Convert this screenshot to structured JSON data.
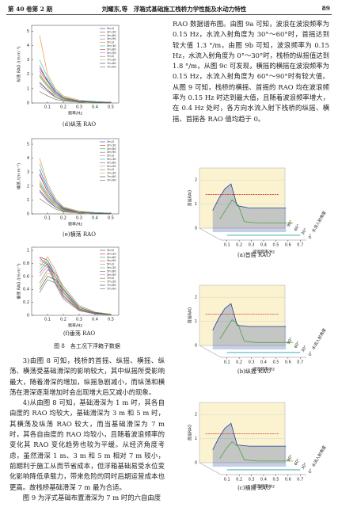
{
  "header": {
    "left": "第 40 卷第 2 期",
    "center": "刘耀东,等　浮箱式基础施工栈桥力学性能及水动力特性",
    "page": "89"
  },
  "left_text": [
    "3)由图 8 可知，栈桥的首摇、纵摇、横摇、纵荡、横荡受基础滑深的影响较大，其中纵摇所受影响最大，随着滑深的增加，纵摇急剧减小，而纵荡和横荡在滑深逐渐增加时会出现增大后又减小的现象。",
    "4)从由图 8 可知，基础滑深为 1 m 时，其各自由度的 RAO 均较大，基础滑深为 3 m 和 5 m 时，其横荡及纵荡 RAO 较大，而当基础滑深为 7 m 时，其各自由度的 RAO 均较小，且随着波浪频率的变化其 RAO 变化趋势也较为平缓。从经济角度考虑，虽然滑深 1 m、3 m 和 5 m 相对 7 m 较小，前期利于施工从而节省成本，但浮箱基础易受水位变化影响降低承载力，带来危险的同时后期运营成本也更高。故栈桥基础滑深 7 m 最为合适。",
    "图 9 为浮式基础布置滑深为 7 m 时的六自由度"
  ],
  "right_text": "RAO 数据谱布图。由图 9a 可知，波浪在波浪频率为 0.15 Hz，水流入射角度为 30°～60°时，首摇达到较大值 1.3 °/m，由图 9b 可知，波浪频率为 0.15 Hz，水流入射角度为 0°～30°时，栈桥的纵摇值达到 1.8 °/m，从图 9c 可发现，横摇的横摇在波浪频率为 0.15 Hz，水流入射角度为 60°～90°时有较大值。从图 9 可知，栈桥的横摇、首摇的 RAO 均在波浪频率为 0.15 Hz 时达到最大值，且随着波浪频率增大，在 0.4 Hz 处时，各方向水流入射下栈桥的纵摇、横摇、首摇各 RAO 值均趋于 0。",
  "figure8_caption": "图 8　各工况下浮箱子数据",
  "chart_data": [
    {
      "type": "line",
      "caption": "(d)纵荡 RAO",
      "ylabel": "纵荡 RAO /(m·m⁻¹)",
      "xlabel": "频率/Hz",
      "xlim": [
        0,
        0.55
      ],
      "ylim": [
        0,
        5.4
      ],
      "xticks": [
        0.1,
        0.2,
        0.3,
        0.4,
        0.5
      ],
      "yticks": [
        0,
        1,
        2,
        3,
        4,
        5
      ],
      "x": [
        0.05,
        0.1,
        0.15,
        0.2,
        0.3,
        0.4,
        0.5
      ],
      "series": [
        {
          "name": "3m,0",
          "color": "#1f3fbf",
          "values": [
            2.4,
            1.6,
            0.8,
            0.4,
            0.15,
            0.1,
            0.05
          ]
        },
        {
          "name": "3m,30",
          "color": "#d62728",
          "values": [
            2.2,
            1.5,
            0.7,
            0.35,
            0.15,
            0.1,
            0.05
          ]
        },
        {
          "name": "3m,60",
          "color": "#2ca02c",
          "values": [
            1.9,
            1.2,
            0.6,
            0.3,
            0.1,
            0.05,
            0.05
          ]
        },
        {
          "name": "3m,90",
          "color": "#9467bd",
          "values": [
            1.2,
            0.8,
            0.4,
            0.2,
            0.1,
            0.05,
            0
          ]
        },
        {
          "name": "5m,0",
          "color": "#ff7f0e",
          "values": [
            4.7,
            2.0,
            1.0,
            0.5,
            0.2,
            0.1,
            0.05
          ]
        },
        {
          "name": "5m,30",
          "color": "#17becf",
          "values": [
            3.0,
            1.8,
            0.9,
            0.4,
            0.15,
            0.1,
            0.05
          ]
        },
        {
          "name": "5m,60",
          "color": "#8c564b",
          "values": [
            2.6,
            1.5,
            0.7,
            0.35,
            0.1,
            0.05,
            0.05
          ]
        },
        {
          "name": "5m,90",
          "color": "#e377c2",
          "values": [
            1.5,
            0.9,
            0.5,
            0.25,
            0.1,
            0.05,
            0
          ]
        },
        {
          "name": "7m,0",
          "color": "#7f7f7f",
          "values": [
            2.0,
            1.3,
            0.6,
            0.3,
            0.1,
            0.05,
            0
          ]
        },
        {
          "name": "7m,30",
          "color": "#bcbd22",
          "values": [
            1.8,
            1.1,
            0.5,
            0.25,
            0.1,
            0.05,
            0
          ]
        },
        {
          "name": "7m,60",
          "color": "#393b79",
          "values": [
            1.4,
            0.9,
            0.4,
            0.2,
            0.1,
            0.05,
            0
          ]
        },
        {
          "name": "7m,90",
          "color": "#637939",
          "values": [
            0.8,
            0.5,
            0.25,
            0.15,
            0.05,
            0,
            0
          ]
        }
      ]
    },
    {
      "type": "line",
      "caption": "(e)横荡 RAO",
      "ylabel": "横荡 /(m·m⁻¹)",
      "xlabel": "频率/Hz",
      "xlim": [
        0,
        0.55
      ],
      "ylim": [
        0,
        5.4
      ],
      "xticks": [
        0.1,
        0.2,
        0.3,
        0.4,
        0.5
      ],
      "yticks": [
        0,
        1,
        2,
        3,
        4,
        5
      ],
      "x": [
        0.05,
        0.1,
        0.15,
        0.2,
        0.3,
        0.4,
        0.5
      ],
      "series": [
        {
          "name": "3m,0",
          "color": "#1f3fbf",
          "values": [
            3.2,
            1.8,
            0.9,
            0.4,
            0.15,
            0.1,
            0.05
          ]
        },
        {
          "name": "3m,30",
          "color": "#d62728",
          "values": [
            2.8,
            1.6,
            0.8,
            0.35,
            0.15,
            0.1,
            0.05
          ]
        },
        {
          "name": "3m,60",
          "color": "#2ca02c",
          "values": [
            2.2,
            1.3,
            0.6,
            0.3,
            0.1,
            0.05,
            0.05
          ]
        },
        {
          "name": "3m,90",
          "color": "#9467bd",
          "values": [
            1.6,
            0.9,
            0.5,
            0.2,
            0.1,
            0.05,
            0
          ]
        },
        {
          "name": "5m,0",
          "color": "#ff7f0e",
          "values": [
            4.0,
            2.2,
            1.1,
            0.5,
            0.2,
            0.1,
            0.05
          ]
        },
        {
          "name": "5m,30",
          "color": "#17becf",
          "values": [
            3.6,
            2.0,
            1.0,
            0.45,
            0.15,
            0.1,
            0.05
          ]
        },
        {
          "name": "5m,60",
          "color": "#8c564b",
          "values": [
            2.9,
            1.6,
            0.8,
            0.35,
            0.1,
            0.05,
            0.05
          ]
        },
        {
          "name": "5m,90",
          "color": "#e377c2",
          "values": [
            2.0,
            1.1,
            0.6,
            0.25,
            0.1,
            0.05,
            0
          ]
        },
        {
          "name": "7m,0",
          "color": "#7f7f7f",
          "values": [
            2.4,
            1.4,
            0.7,
            0.3,
            0.1,
            0.05,
            0
          ]
        },
        {
          "name": "7m,30",
          "color": "#bcbd22",
          "values": [
            2.1,
            1.2,
            0.6,
            0.25,
            0.1,
            0.05,
            0
          ]
        },
        {
          "name": "7m,60",
          "color": "#393b79",
          "values": [
            1.7,
            1.0,
            0.5,
            0.2,
            0.1,
            0.05,
            0
          ]
        },
        {
          "name": "7m,90",
          "color": "#637939",
          "values": [
            1.1,
            0.7,
            0.35,
            0.15,
            0.05,
            0,
            0
          ]
        }
      ]
    },
    {
      "type": "line",
      "caption": "(f)垂荡 RAO",
      "ylabel": "垂荡 RAO /(m·m⁻¹)",
      "xlabel": "频率/Hz",
      "xlim": [
        0,
        0.55
      ],
      "ylim": [
        0,
        1.05
      ],
      "xticks": [
        0.1,
        0.2,
        0.3,
        0.4,
        0.5
      ],
      "yticks": [
        0,
        0.2,
        0.4,
        0.6,
        0.8,
        1
      ],
      "x": [
        0.05,
        0.1,
        0.15,
        0.2,
        0.3,
        0.4,
        0.5
      ],
      "series": [
        {
          "name": "3m,0",
          "color": "#1f3fbf",
          "values": [
            0.9,
            0.85,
            0.6,
            0.35,
            0.1,
            0.03,
            0.01
          ]
        },
        {
          "name": "3m,30",
          "color": "#d62728",
          "values": [
            0.88,
            0.8,
            0.55,
            0.3,
            0.08,
            0.03,
            0.01
          ]
        },
        {
          "name": "3m,60",
          "color": "#2ca02c",
          "values": [
            0.85,
            0.78,
            0.5,
            0.28,
            0.08,
            0.02,
            0.01
          ]
        },
        {
          "name": "3m,90",
          "color": "#9467bd",
          "values": [
            0.8,
            0.75,
            0.48,
            0.25,
            0.07,
            0.02,
            0.01
          ]
        },
        {
          "name": "5m,0",
          "color": "#ff7f0e",
          "values": [
            0.75,
            0.9,
            0.7,
            0.4,
            0.12,
            0.04,
            0.01
          ]
        },
        {
          "name": "5m,30",
          "color": "#17becf",
          "values": [
            0.7,
            0.85,
            0.65,
            0.38,
            0.1,
            0.03,
            0.01
          ]
        },
        {
          "name": "5m,60",
          "color": "#8c564b",
          "values": [
            0.65,
            0.8,
            0.6,
            0.35,
            0.1,
            0.03,
            0.01
          ]
        },
        {
          "name": "5m,90",
          "color": "#e377c2",
          "values": [
            0.6,
            0.75,
            0.55,
            0.32,
            0.09,
            0.03,
            0.01
          ]
        },
        {
          "name": "7m,0",
          "color": "#7f7f7f",
          "values": [
            0.5,
            0.7,
            0.65,
            0.45,
            0.15,
            0.05,
            0.02
          ]
        },
        {
          "name": "7m,30",
          "color": "#bcbd22",
          "values": [
            0.45,
            0.65,
            0.6,
            0.42,
            0.13,
            0.04,
            0.02
          ]
        },
        {
          "name": "7m,60",
          "color": "#393b79",
          "values": [
            0.4,
            0.6,
            0.55,
            0.4,
            0.12,
            0.04,
            0.01
          ]
        },
        {
          "name": "7m,90",
          "color": "#637939",
          "values": [
            0.35,
            0.55,
            0.5,
            0.35,
            0.1,
            0.03,
            0.01
          ]
        }
      ]
    },
    {
      "type": "line3d",
      "caption": "(a)首摇 RAO",
      "ylabel": "首摇RAO",
      "xlabel": "波浪频率/Hz",
      "zlabel": "水流入射角度",
      "xlim": [
        0.05,
        0.75
      ],
      "ylim": [
        0,
        2.5
      ],
      "xticks": [
        0.1,
        0.2,
        0.3,
        0.4,
        0.5,
        0.6,
        0.7
      ],
      "yticks": [
        0,
        1,
        2
      ],
      "x": [
        0.1,
        0.15,
        0.2,
        0.25,
        0.3,
        0.4,
        0.5,
        0.6,
        0.7
      ],
      "series": [
        {
          "name": "0°",
          "color": "#20a0a0",
          "values": [
            0.2,
            0.2,
            0.2,
            0.2,
            0.2,
            0.2,
            0.2,
            0.2,
            0.2
          ]
        },
        {
          "name": "30°",
          "color": "#5cbf2a",
          "values": [
            0.7,
            1.1,
            1.5,
            1.3,
            0.6,
            0.55,
            0.55,
            0.55,
            0.55
          ]
        },
        {
          "name": "60°",
          "color": "#2040a0",
          "values": [
            0.9,
            1.4,
            1.8,
            2.0,
            1.1,
            1.0,
            1.0,
            1.0,
            1.0
          ]
        },
        {
          "name": "90°",
          "color": "#d03030",
          "values": [
            1.4,
            1.4,
            1.4,
            1.4,
            1.4,
            1.4,
            1.4,
            1.4,
            1.4
          ]
        }
      ]
    },
    {
      "type": "line3d",
      "caption": "(b)纵摇 RAO",
      "ylabel": "首摇RAO",
      "xlabel": "波浪频率/Hz",
      "zlabel": "水流入射角度",
      "xlim": [
        0.05,
        0.75
      ],
      "ylim": [
        0,
        2.5
      ],
      "xticks": [
        0.1,
        0.2,
        0.3,
        0.4,
        0.5,
        0.6,
        0.7
      ],
      "yticks": [
        0,
        1,
        2
      ],
      "x": [
        0.1,
        0.15,
        0.2,
        0.25,
        0.3,
        0.4,
        0.5,
        0.6,
        0.7
      ],
      "series": [
        {
          "name": "0°",
          "color": "#20a0a0",
          "values": [
            0.2,
            0.2,
            0.2,
            0.2,
            0.2,
            0.2,
            0.2,
            0.2,
            0.2
          ]
        },
        {
          "name": "30°",
          "color": "#5cbf2a",
          "values": [
            0.6,
            1.0,
            1.4,
            1.2,
            0.5,
            0.45,
            0.45,
            0.45,
            0.45
          ]
        },
        {
          "name": "60°",
          "color": "#2040a0",
          "values": [
            0.8,
            1.3,
            1.7,
            1.9,
            1.0,
            0.95,
            0.95,
            0.95,
            0.95
          ]
        },
        {
          "name": "90°",
          "color": "#d03030",
          "values": [
            1.3,
            1.3,
            1.3,
            1.3,
            1.3,
            1.3,
            1.3,
            1.3,
            1.3
          ]
        }
      ]
    },
    {
      "type": "line3d",
      "caption": "(c)横摇 RAO",
      "ylabel": "首摇RAO",
      "xlabel": "波浪频率/Hz",
      "zlabel": "水流入射角度",
      "xlim": [
        0.05,
        0.75
      ],
      "ylim": [
        0,
        2.5
      ],
      "xticks": [
        0.1,
        0.2,
        0.3,
        0.4,
        0.5,
        0.6,
        0.7
      ],
      "yticks": [
        0,
        1,
        2
      ],
      "x": [
        0.1,
        0.15,
        0.2,
        0.25,
        0.3,
        0.4,
        0.5,
        0.6,
        0.7
      ],
      "series": [
        {
          "name": "0°",
          "color": "#20a0a0",
          "values": [
            0.2,
            0.2,
            0.2,
            0.2,
            0.2,
            0.2,
            0.2,
            0.2,
            0.2
          ]
        },
        {
          "name": "30°",
          "color": "#5cbf2a",
          "values": [
            0.5,
            0.9,
            1.2,
            1.0,
            0.45,
            0.4,
            0.4,
            0.4,
            0.4
          ]
        },
        {
          "name": "60°",
          "color": "#2040a0",
          "values": [
            0.7,
            1.2,
            1.6,
            1.8,
            0.9,
            0.85,
            0.85,
            0.85,
            0.85
          ]
        },
        {
          "name": "90°",
          "color": "#d03030",
          "values": [
            1.2,
            1.2,
            1.2,
            1.2,
            1.2,
            1.2,
            1.2,
            1.2,
            1.2
          ]
        }
      ]
    }
  ]
}
